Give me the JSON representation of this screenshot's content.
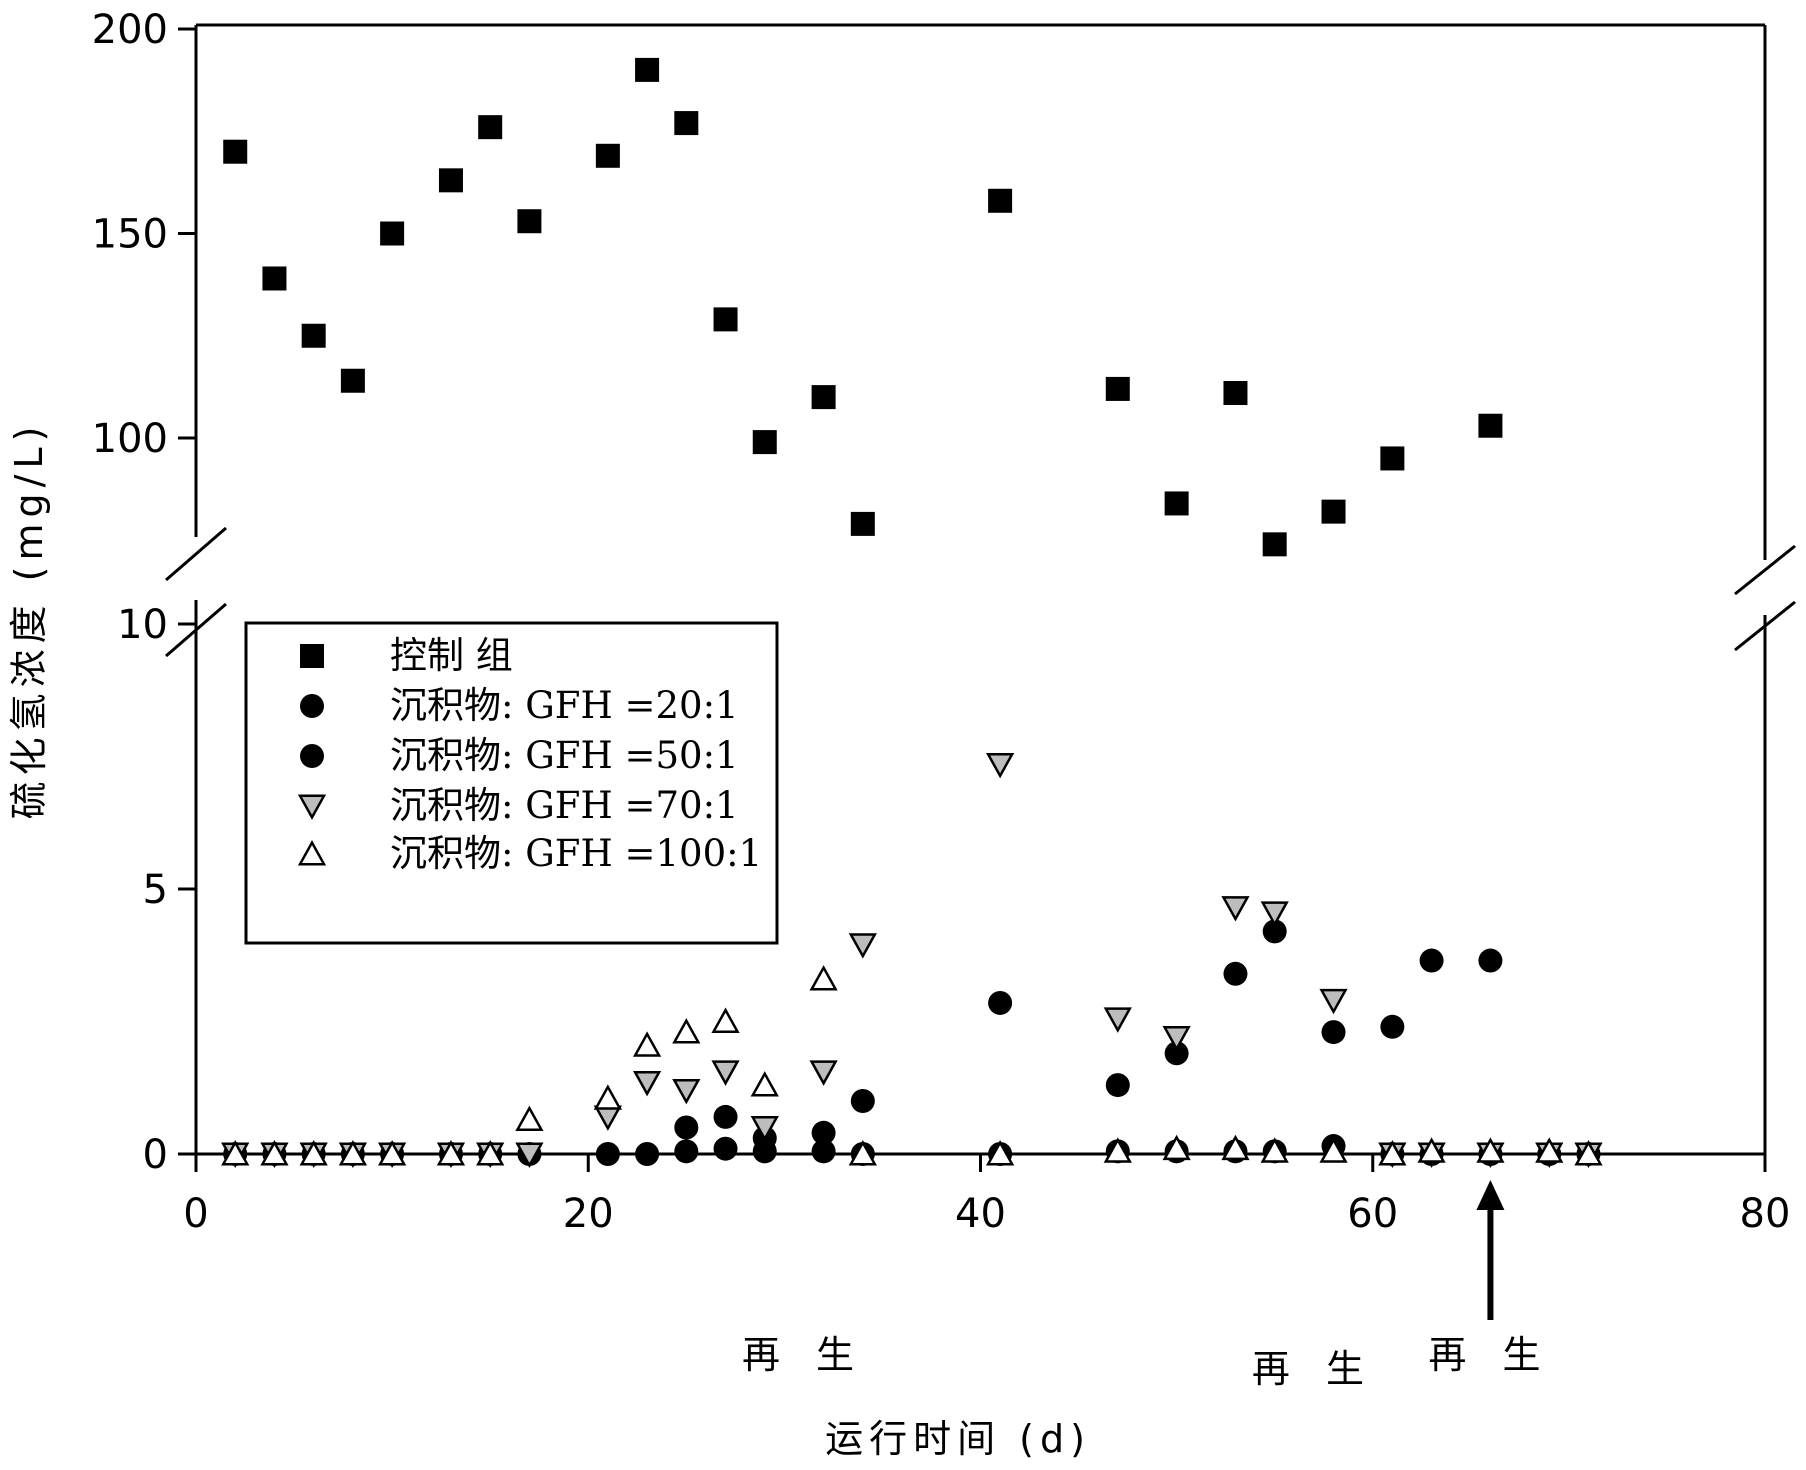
{
  "chart_data": {
    "type": "scatter",
    "title": "",
    "xlabel": "运行时间 (d)",
    "ylabel": "硫化氢浓度 (mg/L)",
    "xlim": [
      0,
      80
    ],
    "x_ticks": [
      "0",
      "20",
      "40",
      "60",
      "80"
    ],
    "y_axis": {
      "broken": true,
      "lower_range": [
        0,
        10
      ],
      "upper_range": [
        80,
        200
      ],
      "lower_ticks": [
        "0",
        "5",
        "10"
      ],
      "upper_ticks": [
        "100",
        "150",
        "200"
      ]
    },
    "grid": false,
    "legend_position": "upper-left",
    "series": [
      {
        "name": "控制 组",
        "marker": "square",
        "x": [
          2,
          4,
          6,
          8,
          10,
          13,
          15,
          17,
          21,
          23,
          25,
          27,
          29,
          32,
          34,
          41,
          47,
          50,
          53,
          55,
          58,
          61,
          66
        ],
        "y": [
          170,
          139,
          125,
          114,
          150,
          163,
          176,
          153,
          169,
          190,
          177,
          129,
          99,
          110,
          79,
          158,
          112,
          84,
          111,
          74,
          82,
          95,
          103
        ]
      },
      {
        "name": "沉积物: GFH =20:1",
        "marker": "circle",
        "x": [
          2,
          4,
          6,
          8,
          10,
          13,
          15,
          17,
          21,
          23,
          25,
          27,
          29,
          32,
          34,
          41,
          47,
          50,
          53,
          55,
          58,
          61,
          63,
          66,
          69,
          71
        ],
        "y": [
          0,
          0,
          0,
          0,
          0,
          0,
          0,
          0,
          0,
          0,
          0.05,
          0.1,
          0.05,
          0.05,
          0,
          0,
          0.05,
          0.05,
          0.05,
          0.05,
          0.15,
          0,
          0,
          0,
          0,
          0
        ]
      },
      {
        "name": "沉积物: GFH =50:1",
        "marker": "circle",
        "x": [
          25,
          27,
          29,
          32,
          34,
          41,
          47,
          50,
          53,
          55,
          58,
          61,
          63,
          66
        ],
        "y": [
          0.5,
          0.7,
          0.3,
          0.4,
          1.0,
          2.85,
          1.3,
          1.9,
          3.4,
          4.2,
          2.3,
          2.4,
          3.65,
          3.65
        ]
      },
      {
        "name": "沉积物: GFH =70:1",
        "marker": "triangle-down",
        "x": [
          2,
          4,
          6,
          8,
          10,
          13,
          15,
          17,
          21,
          23,
          25,
          27,
          29,
          32,
          34,
          41,
          47,
          50,
          53,
          55,
          58,
          61,
          63,
          66,
          69,
          71
        ],
        "y": [
          0,
          0,
          0,
          0,
          0,
          0,
          0,
          0,
          0.7,
          1.35,
          1.2,
          1.55,
          0.5,
          1.55,
          3.95,
          7.35,
          2.55,
          2.2,
          4.65,
          4.55,
          2.9,
          0,
          0,
          0,
          0,
          0
        ]
      },
      {
        "name": "沉积物: GFH =100:1",
        "marker": "triangle-up",
        "x": [
          2,
          4,
          6,
          8,
          10,
          13,
          15,
          17,
          21,
          23,
          25,
          27,
          29,
          32,
          34,
          41,
          47,
          50,
          53,
          55,
          58,
          61,
          63,
          66,
          69,
          71
        ],
        "y": [
          0,
          0,
          0,
          0,
          0,
          0,
          0,
          0.65,
          1.05,
          2.05,
          2.3,
          2.5,
          1.3,
          3.3,
          0,
          0,
          0.05,
          0.1,
          0.1,
          0.05,
          0.05,
          0,
          0.05,
          0.05,
          0.05,
          0
        ]
      }
    ],
    "annotations": [
      {
        "text": "再 生",
        "x": 31
      },
      {
        "text": "再 生",
        "x": 57
      },
      {
        "text": "再 生",
        "x": 66,
        "arrow": true
      }
    ]
  }
}
